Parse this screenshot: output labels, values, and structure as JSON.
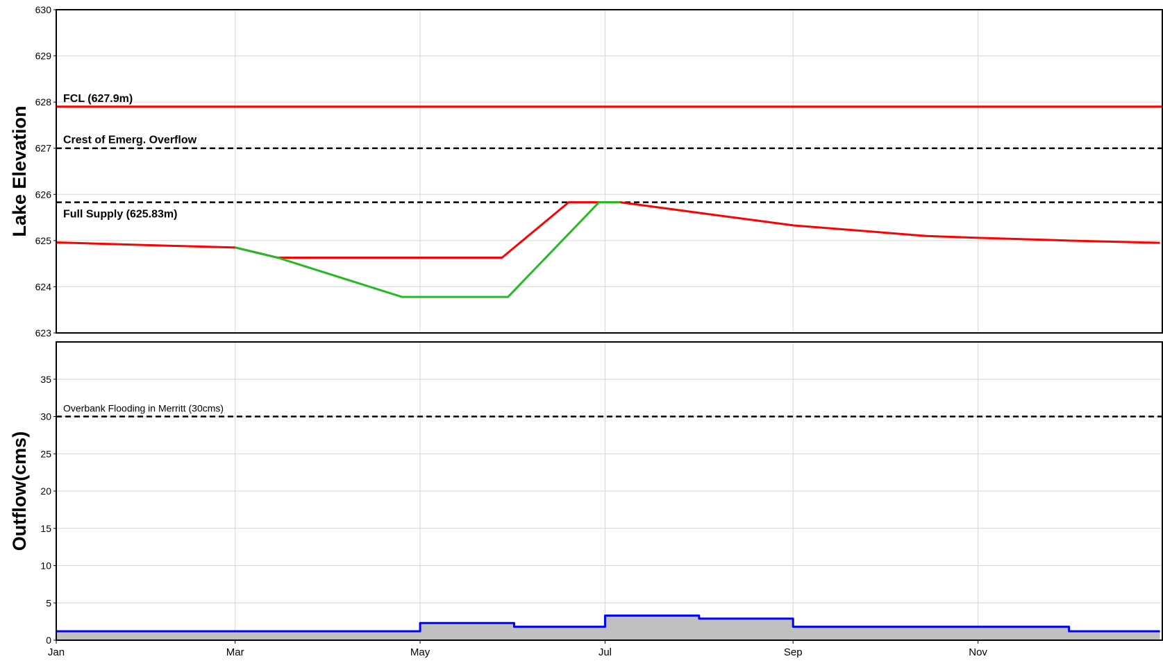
{
  "chart_data": [
    {
      "type": "line",
      "panel": "top",
      "xlabel": "",
      "ylabel": "Lake Elevation",
      "ylim": [
        623,
        630
      ],
      "yticks": [
        "623",
        "624",
        "625",
        "626",
        "627",
        "628",
        "629",
        "630"
      ],
      "x_axis": "months (Jan–Dec, shared with bottom panel)",
      "grid": true,
      "reference_lines": [
        {
          "label": "FCL (627.9m)",
          "y": 627.9,
          "color": "#ff0000",
          "style": "solid"
        },
        {
          "label": "Crest of Emerg. Overflow",
          "y": 627.0,
          "color": "#000000",
          "style": "dashed"
        },
        {
          "label": "Full Supply (625.83m)",
          "y": 625.83,
          "color": "#000000",
          "style": "dashed"
        }
      ],
      "series": [
        {
          "color": "#ff0000",
          "points": [
            [
              "Jan 1",
              624.96
            ],
            [
              "Feb 1",
              624.9
            ],
            [
              "Mar 1",
              624.85
            ],
            [
              "Mar 15",
              624.63
            ],
            [
              "May 1",
              624.63
            ],
            [
              "May 28",
              624.63
            ],
            [
              "Jun 19",
              625.83
            ],
            [
              "Jul 6",
              625.83
            ],
            [
              "Aug 1",
              625.6
            ],
            [
              "Sep 1",
              625.33
            ],
            [
              "Oct 15",
              625.1
            ],
            [
              "Nov 1",
              625.06
            ],
            [
              "Dec 1",
              625.0
            ],
            [
              "Dec 31",
              624.95
            ]
          ]
        },
        {
          "color": "#22bb22",
          "points": [
            [
              "Mar 1",
              624.85
            ],
            [
              "Mar 15",
              624.63
            ],
            [
              "Apr 25",
              623.78
            ],
            [
              "May 30",
              623.78
            ],
            [
              "Jun 29",
              625.83
            ],
            [
              "Jul 6",
              625.83
            ]
          ]
        }
      ]
    },
    {
      "type": "area",
      "panel": "bottom",
      "xlabel": "",
      "ylabel": "Outflow(cms)",
      "ylim": [
        0,
        40
      ],
      "yticks": [
        "0",
        "5",
        "10",
        "15",
        "20",
        "25",
        "30",
        "35"
      ],
      "x_ticks": [
        "Jan",
        "Mar",
        "May",
        "Jul",
        "Sep",
        "Nov"
      ],
      "grid": true,
      "reference_lines": [
        {
          "label": "Overbank Flooding in Merritt (30cms)",
          "y": 30,
          "color": "#000000",
          "style": "dashed"
        }
      ],
      "series": [
        {
          "color": "#0000ff",
          "fill": "#c0c0c0",
          "step": true,
          "points": [
            [
              "Jan 1",
              1.2
            ],
            [
              "May 1",
              1.2
            ],
            [
              "May 1",
              2.3
            ],
            [
              "Jun 1",
              2.3
            ],
            [
              "Jun 1",
              1.8
            ],
            [
              "Jul 1",
              1.8
            ],
            [
              "Jul 1",
              3.3
            ],
            [
              "Aug 1",
              3.3
            ],
            [
              "Aug 1",
              2.9
            ],
            [
              "Sep 1",
              2.9
            ],
            [
              "Sep 1",
              1.8
            ],
            [
              "Dec 1",
              1.8
            ],
            [
              "Dec 1",
              1.2
            ],
            [
              "Dec 31",
              1.2
            ]
          ]
        }
      ]
    }
  ],
  "style": {
    "grid_color": "#d6d6d6",
    "frame_color": "#000000",
    "area_fill": "#c0c0c0"
  }
}
